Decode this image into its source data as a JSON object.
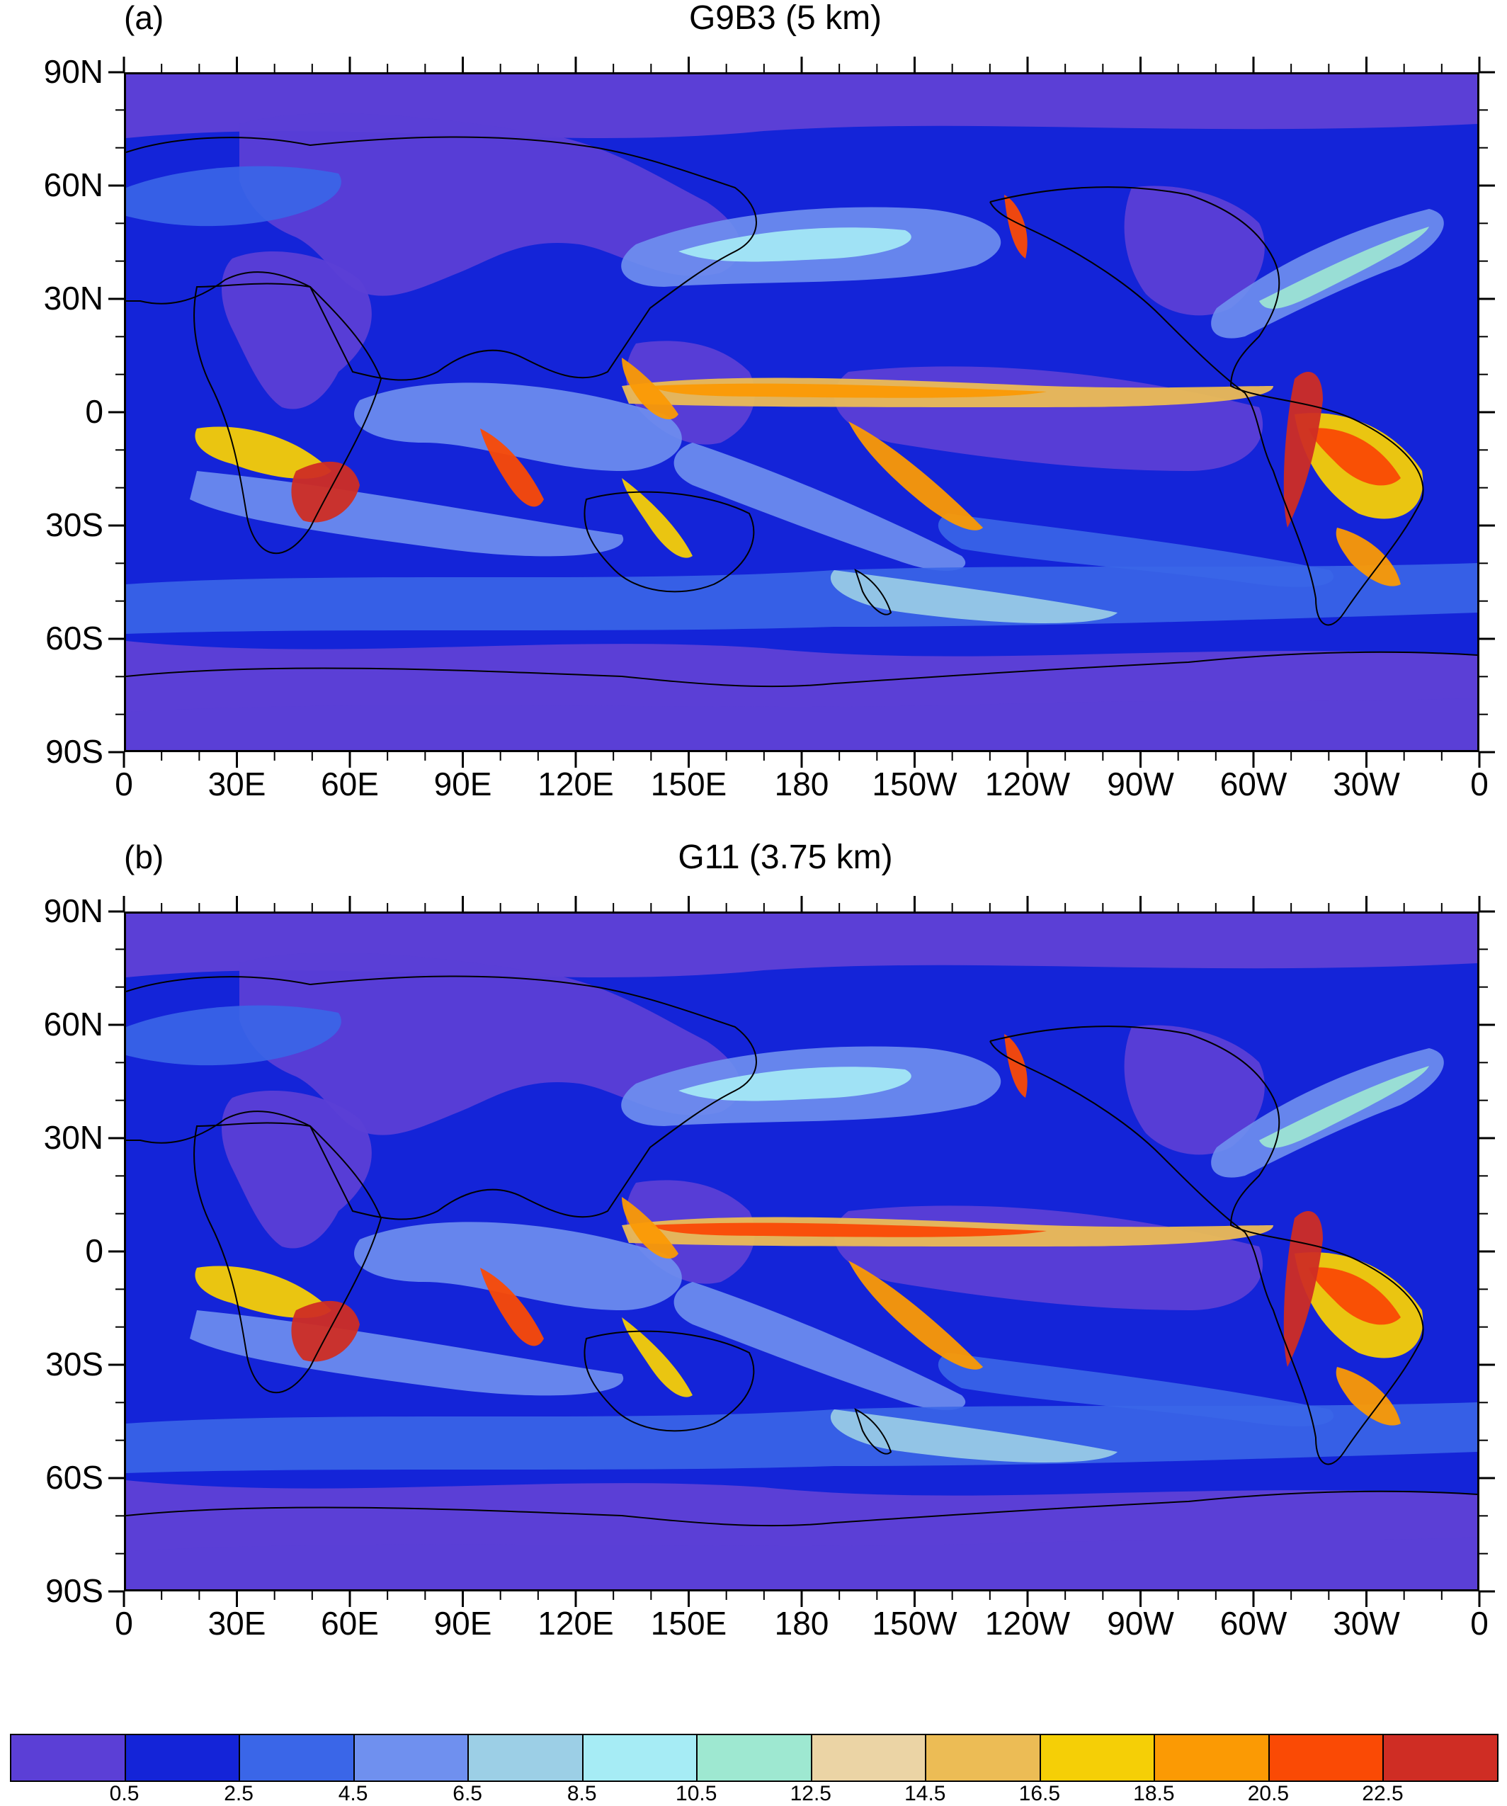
{
  "panels": [
    {
      "id": "a",
      "label": "(a)",
      "title": "G9B3 (5 km)"
    },
    {
      "id": "b",
      "label": "(b)",
      "title": "G11 (3.75 km)"
    }
  ],
  "axes": {
    "y_ticks": [
      "90N",
      "60N",
      "30N",
      "0",
      "30S",
      "60S",
      "90S"
    ],
    "x_ticks": [
      "0",
      "30E",
      "60E",
      "90E",
      "120E",
      "150E",
      "180",
      "150W",
      "120W",
      "90W",
      "60W",
      "30W",
      "0"
    ]
  },
  "colorbar": {
    "colors": [
      "#5b3fd6",
      "#1424d8",
      "#3a66e8",
      "#6f90ef",
      "#9ccfe6",
      "#a6ecf5",
      "#9ee8d1",
      "#ebd4a5",
      "#ecbc55",
      "#f5cf06",
      "#fb9a04",
      "#fa4a05",
      "#cf2d24"
    ],
    "labels": [
      "0.5",
      "2.5",
      "4.5",
      "6.5",
      "8.5",
      "10.5",
      "12.5",
      "14.5",
      "16.5",
      "18.5",
      "20.5",
      "22.5"
    ]
  }
}
